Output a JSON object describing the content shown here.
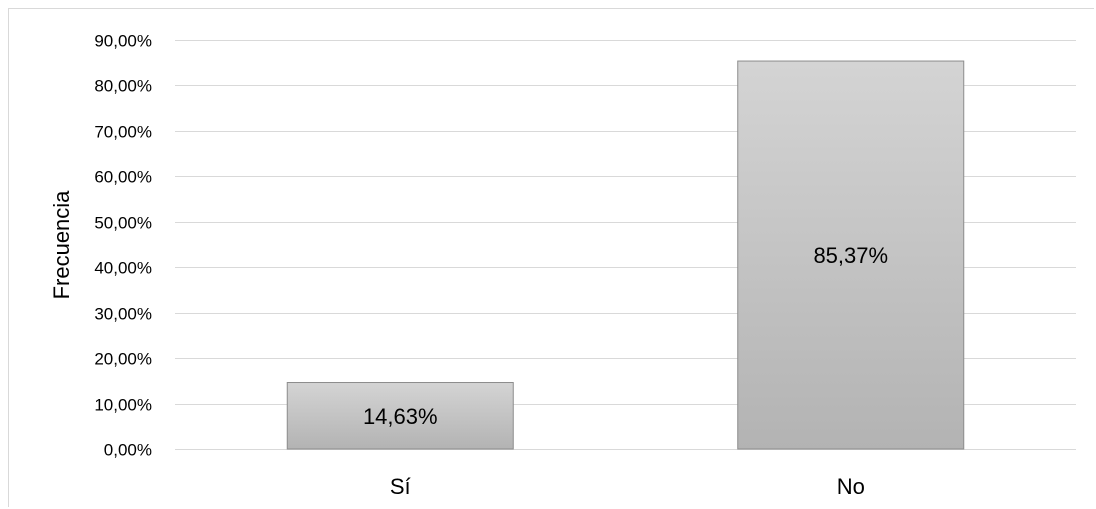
{
  "chart_data": {
    "type": "bar",
    "categories": [
      "Sí",
      "No"
    ],
    "values": [
      14.63,
      85.37
    ],
    "data_labels": [
      "14,63%",
      "85,37%"
    ],
    "ylabel": "Frecuencia",
    "xlabel": "",
    "ylim": [
      0,
      90
    ],
    "y_ticks": [
      0,
      10,
      20,
      30,
      40,
      50,
      60,
      70,
      80,
      90
    ],
    "y_tick_labels": [
      "0,00%",
      "10,00%",
      "20,00%",
      "30,00%",
      "40,00%",
      "50,00%",
      "60,00%",
      "70,00%",
      "80,00%",
      "90,00%"
    ],
    "grid": true,
    "legend": "none",
    "colors": {
      "bar_fill_top": "#d4d4d4",
      "bar_fill_bottom": "#b3b3b3",
      "bar_stroke": "#8c8c8c",
      "gridline": "#d9d9d9"
    }
  }
}
